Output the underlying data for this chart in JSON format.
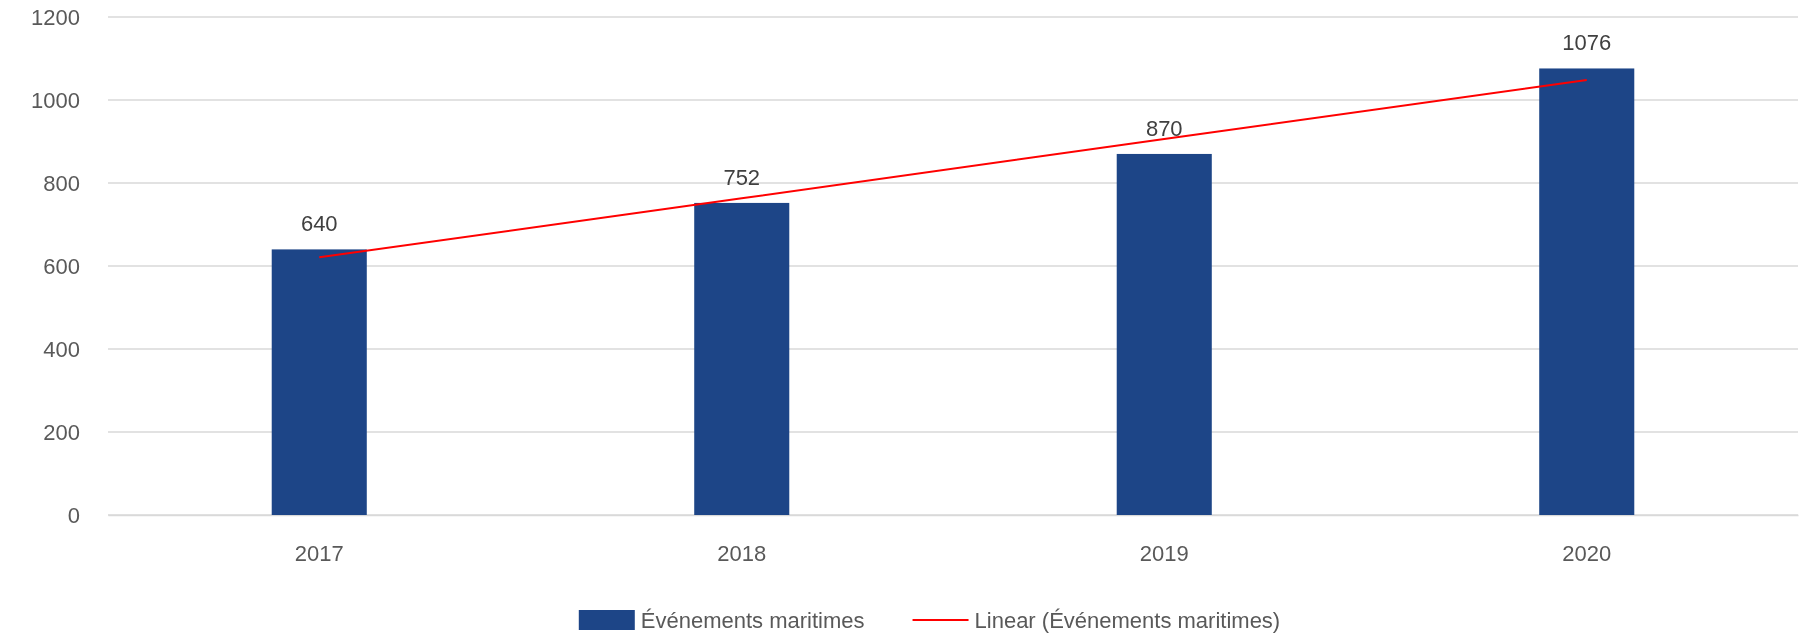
{
  "chart_data": {
    "type": "bar",
    "categories": [
      "2017",
      "2018",
      "2019",
      "2020"
    ],
    "series": [
      {
        "name": "Événements maritimes",
        "color": "#1d4587",
        "values": [
          640,
          752,
          870,
          1076
        ],
        "value_labels": [
          "640",
          "752",
          "870",
          "1076"
        ]
      },
      {
        "name": "Linear (Événements maritimes)",
        "type": "line",
        "color": "#ff0000",
        "values": [
          621,
          763,
          906,
          1048
        ]
      }
    ],
    "ylim": [
      0,
      1200
    ],
    "yticks": [
      0,
      200,
      400,
      600,
      800,
      1000,
      1200
    ],
    "grid": "y",
    "legend": "bottom"
  }
}
